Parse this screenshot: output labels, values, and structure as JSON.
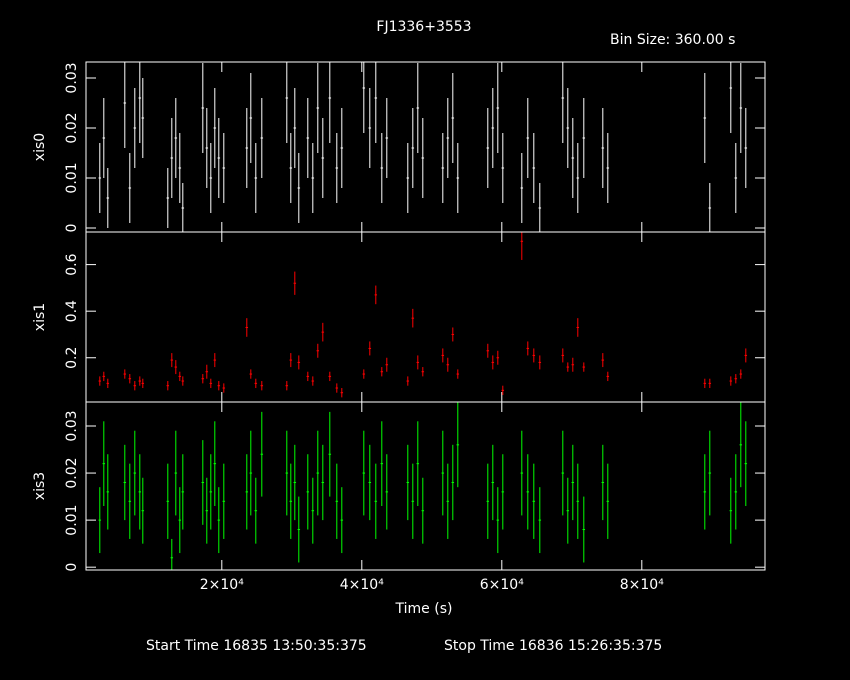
{
  "chart_data": {
    "type": "errorbar",
    "title": "FJ1336+3553",
    "subtitle": "Bin Size: 360.00 s",
    "xlabel": "Time (s)",
    "start_time": "Start Time 16835 13:50:35:375",
    "stop_time": "Stop Time 16836 15:26:35:375",
    "xlim": [
      600,
      97600
    ],
    "xticks": [
      {
        "value": 20000,
        "label": "2×10⁴"
      },
      {
        "value": 40000,
        "label": "4×10⁴"
      },
      {
        "value": 60000,
        "label": "6×10⁴"
      },
      {
        "value": 80000,
        "label": "8×10⁴"
      }
    ],
    "x": [
      2571,
      3143,
      3714,
      6143,
      6857,
      7571,
      8286,
      8714,
      12286,
      12857,
      13429,
      14000,
      14429,
      17286,
      17857,
      18429,
      19000,
      19571,
      20286,
      23571,
      24143,
      24857,
      25714,
      29286,
      29857,
      30429,
      31000,
      32286,
      33000,
      33714,
      34429,
      35429,
      36429,
      37143,
      40286,
      41143,
      42000,
      42857,
      43571,
      46571,
      47286,
      48000,
      48714,
      51571,
      52286,
      53000,
      53714,
      58000,
      58714,
      59429,
      60143,
      62857,
      63714,
      64571,
      65429,
      68714,
      69429,
      70143,
      70857,
      71714,
      74429,
      75143,
      89000,
      89714,
      92714,
      93429,
      94143,
      94857
    ],
    "series": [
      {
        "name": "xis0",
        "color": "#ffffff",
        "ylim": [
          -0.0008,
          0.0332
        ],
        "yticks": [
          0,
          0.01,
          0.02,
          0.03
        ],
        "values": [
          0.01,
          0.018,
          0.006,
          0.025,
          0.008,
          0.02,
          0.026,
          0.022,
          0.006,
          0.014,
          0.018,
          0.012,
          0.004,
          0.024,
          0.016,
          0.01,
          0.02,
          0.014,
          0.012,
          0.016,
          0.022,
          0.01,
          0.018,
          0.026,
          0.012,
          0.02,
          0.008,
          0.018,
          0.01,
          0.024,
          0.014,
          0.026,
          0.012,
          0.016,
          0.028,
          0.02,
          0.026,
          0.012,
          0.018,
          0.01,
          0.016,
          0.024,
          0.014,
          0.012,
          0.018,
          0.022,
          0.01,
          0.016,
          0.02,
          0.024,
          0.012,
          0.008,
          0.018,
          0.012,
          0.004,
          0.026,
          0.02,
          0.014,
          0.01,
          0.018,
          0.016,
          0.012,
          0.022,
          0.004,
          0.028,
          0.01,
          0.024,
          0.016
        ],
        "errors": [
          0.007,
          0.008,
          0.006,
          0.009,
          0.007,
          0.008,
          0.009,
          0.008,
          0.006,
          0.008,
          0.008,
          0.007,
          0.005,
          0.009,
          0.008,
          0.007,
          0.008,
          0.008,
          0.007,
          0.008,
          0.009,
          0.007,
          0.008,
          0.009,
          0.007,
          0.008,
          0.007,
          0.008,
          0.007,
          0.009,
          0.008,
          0.009,
          0.007,
          0.008,
          0.009,
          0.008,
          0.009,
          0.007,
          0.008,
          0.007,
          0.008,
          0.009,
          0.008,
          0.007,
          0.008,
          0.009,
          0.007,
          0.008,
          0.008,
          0.009,
          0.007,
          0.007,
          0.008,
          0.007,
          0.005,
          0.009,
          0.008,
          0.008,
          0.007,
          0.008,
          0.008,
          0.007,
          0.009,
          0.005,
          0.009,
          0.007,
          0.009,
          0.008
        ]
      },
      {
        "name": "xis1",
        "color": "#ff0000",
        "ylim": [
          0.01,
          0.74
        ],
        "yticks": [
          0.2,
          0.4,
          0.6
        ],
        "values": [
          0.1,
          0.12,
          0.09,
          0.13,
          0.11,
          0.08,
          0.1,
          0.09,
          0.08,
          0.19,
          0.16,
          0.12,
          0.1,
          0.11,
          0.14,
          0.09,
          0.19,
          0.08,
          0.07,
          0.33,
          0.13,
          0.09,
          0.08,
          0.08,
          0.19,
          0.52,
          0.18,
          0.12,
          0.1,
          0.23,
          0.31,
          0.12,
          0.07,
          0.05,
          0.13,
          0.24,
          0.47,
          0.14,
          0.17,
          0.1,
          0.37,
          0.18,
          0.14,
          0.21,
          0.17,
          0.3,
          0.13,
          0.23,
          0.18,
          0.2,
          0.06,
          0.7,
          0.24,
          0.21,
          0.18,
          0.21,
          0.16,
          0.17,
          0.33,
          0.16,
          0.19,
          0.12,
          0.09,
          0.09,
          0.1,
          0.11,
          0.13,
          0.21
        ],
        "errors": [
          0.02,
          0.02,
          0.02,
          0.02,
          0.02,
          0.02,
          0.02,
          0.02,
          0.02,
          0.03,
          0.03,
          0.02,
          0.02,
          0.02,
          0.03,
          0.02,
          0.03,
          0.02,
          0.02,
          0.04,
          0.02,
          0.02,
          0.02,
          0.02,
          0.03,
          0.05,
          0.03,
          0.02,
          0.02,
          0.03,
          0.04,
          0.02,
          0.02,
          0.02,
          0.02,
          0.03,
          0.04,
          0.02,
          0.03,
          0.02,
          0.04,
          0.03,
          0.02,
          0.03,
          0.03,
          0.03,
          0.02,
          0.03,
          0.03,
          0.03,
          0.02,
          0.08,
          0.03,
          0.03,
          0.03,
          0.03,
          0.02,
          0.03,
          0.04,
          0.02,
          0.03,
          0.02,
          0.02,
          0.02,
          0.02,
          0.02,
          0.02,
          0.03
        ]
      },
      {
        "name": "xis3",
        "color": "#00ff00",
        "ylim": [
          -0.0006,
          0.0351
        ],
        "yticks": [
          0,
          0.01,
          0.02,
          0.03
        ],
        "values": [
          0.01,
          0.022,
          0.016,
          0.018,
          0.014,
          0.02,
          0.016,
          0.012,
          0.014,
          0.002,
          0.02,
          0.01,
          0.016,
          0.018,
          0.012,
          0.016,
          0.022,
          0.01,
          0.014,
          0.016,
          0.02,
          0.012,
          0.024,
          0.02,
          0.014,
          0.018,
          0.008,
          0.016,
          0.012,
          0.02,
          0.018,
          0.024,
          0.014,
          0.01,
          0.02,
          0.018,
          0.014,
          0.022,
          0.016,
          0.018,
          0.014,
          0.022,
          0.012,
          0.02,
          0.014,
          0.018,
          0.026,
          0.014,
          0.018,
          0.01,
          0.016,
          0.02,
          0.016,
          0.014,
          0.01,
          0.02,
          0.012,
          0.018,
          0.014,
          0.008,
          0.018,
          0.014,
          0.016,
          0.02,
          0.012,
          0.016,
          0.026,
          0.022
        ],
        "errors": [
          0.007,
          0.009,
          0.008,
          0.008,
          0.008,
          0.009,
          0.008,
          0.007,
          0.008,
          0.004,
          0.009,
          0.007,
          0.008,
          0.009,
          0.007,
          0.008,
          0.009,
          0.007,
          0.008,
          0.008,
          0.009,
          0.007,
          0.009,
          0.009,
          0.008,
          0.008,
          0.007,
          0.008,
          0.007,
          0.009,
          0.008,
          0.009,
          0.008,
          0.007,
          0.009,
          0.008,
          0.008,
          0.009,
          0.008,
          0.008,
          0.008,
          0.009,
          0.007,
          0.009,
          0.008,
          0.008,
          0.009,
          0.008,
          0.008,
          0.007,
          0.008,
          0.009,
          0.008,
          0.008,
          0.007,
          0.009,
          0.007,
          0.008,
          0.008,
          0.007,
          0.008,
          0.008,
          0.008,
          0.009,
          0.007,
          0.008,
          0.009,
          0.009
        ]
      }
    ]
  }
}
